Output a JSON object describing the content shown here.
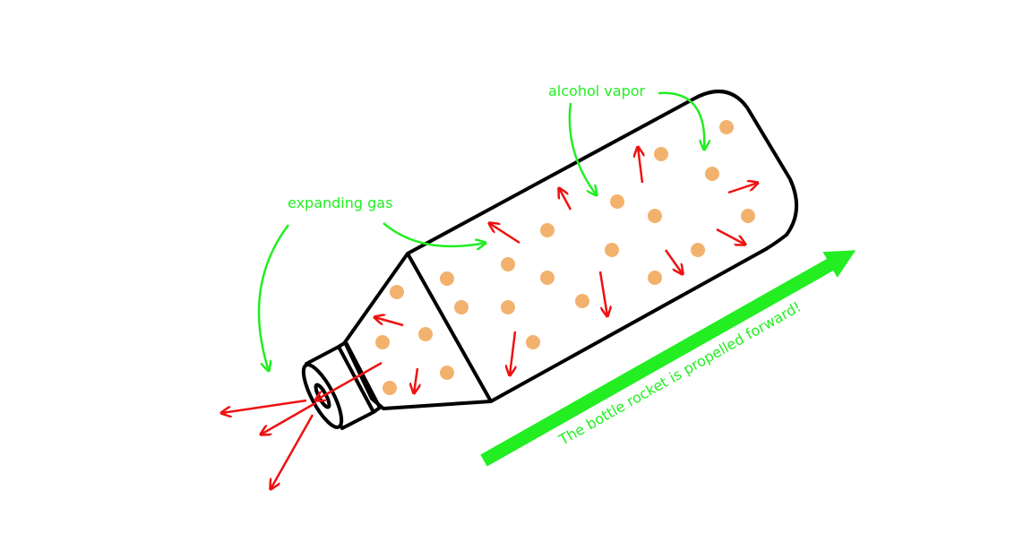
{
  "labels": {
    "alcohol_vapor": "alcohol vapor",
    "expanding_gas": "expanding gas",
    "propelled": "The bottle rocket is propelled forward!"
  },
  "colors": {
    "label_green": "#22ee22",
    "arrow_red": "#ee1111",
    "dot_orange": "#f2b26e",
    "outline": "#000000"
  }
}
